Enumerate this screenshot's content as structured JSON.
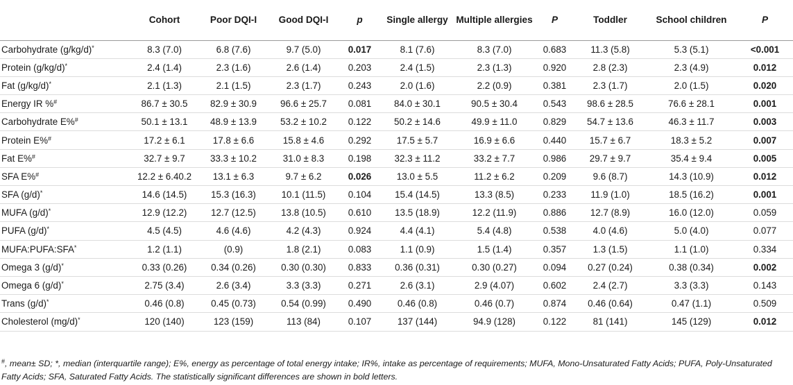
{
  "table": {
    "headers": {
      "stub": "",
      "cohort": "Cohort",
      "poor": "Poor DQI-I",
      "good": "Good DQI-I",
      "p1": "p",
      "single": "Single allergy",
      "multiple": "Multiple allergies",
      "p2": "P",
      "toddler": "Toddler",
      "school": "School children",
      "p3": "P"
    },
    "rows": [
      {
        "label": "Carbohydrate (g/kg/d)*",
        "cohort": "8.3 (7.0)",
        "poor": "6.8 (7.6)",
        "good": "9.7 (5.0)",
        "p1": "0.017",
        "single": "8.1 (7.6)",
        "multiple": "8.3 (7.0)",
        "p2": "0.683",
        "toddler": "11.3 (5.8)",
        "school": "5.3 (5.1)",
        "p3": "<0.001"
      },
      {
        "label": "Protein (g/kg/d)*",
        "cohort": "2.4 (1.4)",
        "poor": "2.3 (1.6)",
        "good": "2.6 (1.4)",
        "p1": "0.203",
        "single": "2.4 (1.5)",
        "multiple": "2.3 (1.3)",
        "p2": "0.920",
        "toddler": "2.8 (2.3)",
        "school": "2.3 (4.9)",
        "p3": "0.012"
      },
      {
        "label": "Fat (g/kg/d)*",
        "cohort": "2.1 (1.3)",
        "poor": "2.1 (1.5)",
        "good": "2.3 (1.7)",
        "p1": "0.243",
        "single": "2.0 (1.6)",
        "multiple": "2.2 (0.9)",
        "p2": "0.381",
        "toddler": "2.3 (1.7)",
        "school": "2.0 (1.5)",
        "p3": "0.020"
      },
      {
        "label": "Energy IR %#",
        "cohort": "86.7 ± 30.5",
        "poor": "82.9 ± 30.9",
        "good": "96.6 ± 25.7",
        "p1": "0.081",
        "single": "84.0 ± 30.1",
        "multiple": "90.5 ± 30.4",
        "p2": "0.543",
        "toddler": "98.6 ± 28.5",
        "school": "76.6 ± 28.1",
        "p3": "0.001"
      },
      {
        "label": "Carbohydrate E%#",
        "cohort": "50.1 ± 13.1",
        "poor": "48.9 ± 13.9",
        "good": "53.2 ± 10.2",
        "p1": "0.122",
        "single": "50.2 ± 14.6",
        "multiple": "49.9 ± 11.0",
        "p2": "0.829",
        "toddler": "54.7 ± 13.6",
        "school": "46.3 ± 11.7",
        "p3": "0.003"
      },
      {
        "label": "Protein E%#",
        "cohort": "17.2 ± 6.1",
        "poor": "17.8 ± 6.6",
        "good": "15.8 ± 4.6",
        "p1": "0.292",
        "single": "17.5 ± 5.7",
        "multiple": "16.9 ± 6.6",
        "p2": "0.440",
        "toddler": "15.7 ± 6.7",
        "school": "18.3 ± 5.2",
        "p3": "0.007"
      },
      {
        "label": "Fat E%#",
        "cohort": "32.7 ± 9.7",
        "poor": "33.3 ± 10.2",
        "good": "31.0 ± 8.3",
        "p1": "0.198",
        "single": "32.3 ± 11.2",
        "multiple": "33.2 ± 7.7",
        "p2": "0.986",
        "toddler": "29.7 ± 9.7",
        "school": "35.4 ± 9.4",
        "p3": "0.005"
      },
      {
        "label": "SFA E%#",
        "cohort": "12.2 ± 6.40.2",
        "poor": "13.1 ± 6.3",
        "good": "9.7 ± 6.2",
        "p1": "0.026",
        "single": "13.0 ± 5.5",
        "multiple": "11.2 ± 6.2",
        "p2": "0.209",
        "toddler": "9.6 (8.7)",
        "school": "14.3 (10.9)",
        "p3": "0.012"
      },
      {
        "label": "SFA (g/d)*",
        "cohort": "14.6 (14.5)",
        "poor": "15.3 (16.3)",
        "good": "10.1 (11.5)",
        "p1": "0.104",
        "single": "15.4 (14.5)",
        "multiple": "13.3 (8.5)",
        "p2": "0.233",
        "toddler": "11.9 (1.0)",
        "school": "18.5 (16.2)",
        "p3": "0.001"
      },
      {
        "label": "MUFA (g/d)*",
        "cohort": "12.9 (12.2)",
        "poor": "12.7 (12.5)",
        "good": "13.8 (10.5)",
        "p1": "0.610",
        "single": "13.5 (18.9)",
        "multiple": "12.2 (11.9)",
        "p2": "0.886",
        "toddler": "12.7 (8.9)",
        "school": "16.0 (12.0)",
        "p3": "0.059"
      },
      {
        "label": "PUFA (g/d)*",
        "cohort": "4.5 (4.5)",
        "poor": "4.6 (4.6)",
        "good": "4.2 (4.3)",
        "p1": "0.924",
        "single": "4.4 (4.1)",
        "multiple": "5.4 (4.8)",
        "p2": "0.538",
        "toddler": "4.0 (4.6)",
        "school": "5.0 (4.0)",
        "p3": "0.077"
      },
      {
        "label": "MUFA:PUFA:SFA*",
        "cohort": "1.2 (1.1)",
        "poor": "(0.9)",
        "good": "1.8 (2.1)",
        "p1": "0.083",
        "single": "1.1 (0.9)",
        "multiple": "1.5 (1.4)",
        "p2": "0.357",
        "toddler": "1.3 (1.5)",
        "school": "1.1 (1.0)",
        "p3": "0.334"
      },
      {
        "label": "Omega 3 (g/d)*",
        "cohort": "0.33 (0.26)",
        "poor": "0.34 (0.26)",
        "good": "0.30 (0.30)",
        "p1": "0.833",
        "single": "0.36 (0.31)",
        "multiple": "0.30 (0.27)",
        "p2": "0.094",
        "toddler": "0.27 (0.24)",
        "school": "0.38 (0.34)",
        "p3": "0.002"
      },
      {
        "label": "Omega 6 (g/d)*",
        "cohort": "2.75 (3.4)",
        "poor": "2.6 (3.4)",
        "good": "3.3 (3.3)",
        "p1": "0.271",
        "single": "2.6 (3.1)",
        "multiple": "2.9 (4.07)",
        "p2": "0.602",
        "toddler": "2.4 (2.7)",
        "school": "3.3 (3.3)",
        "p3": "0.143"
      },
      {
        "label": "Trans (g/d)*",
        "cohort": "0.46 (0.8)",
        "poor": "0.45 (0.73)",
        "good": "0.54 (0.99)",
        "p1": "0.490",
        "single": "0.46 (0.8)",
        "multiple": "0.46 (0.7)",
        "p2": "0.874",
        "toddler": "0.46 (0.64)",
        "school": "0.47 (1.1)",
        "p3": "0.509"
      },
      {
        "label": "Cholesterol (mg/d)*",
        "cohort": "120 (140)",
        "poor": "123 (159)",
        "good": "113 (84)",
        "p1": "0.107",
        "single": "137 (144)",
        "multiple": "94.9 (128)",
        "p2": "0.122",
        "toddler": "81 (141)",
        "school": "145 (129)",
        "p3": "0.012"
      }
    ]
  },
  "footnote": {
    "mark": "#",
    "text": ", mean± SD; *, median (interquartile range); E%, energy as percentage of total energy intake; IR%, intake as percentage of requirements; MUFA, Mono-Unsaturated Fatty Acids; PUFA, Poly-Unsaturated Fatty Acids; SFA, Saturated Fatty Acids. The statistically significant differences are shown in bold letters."
  }
}
